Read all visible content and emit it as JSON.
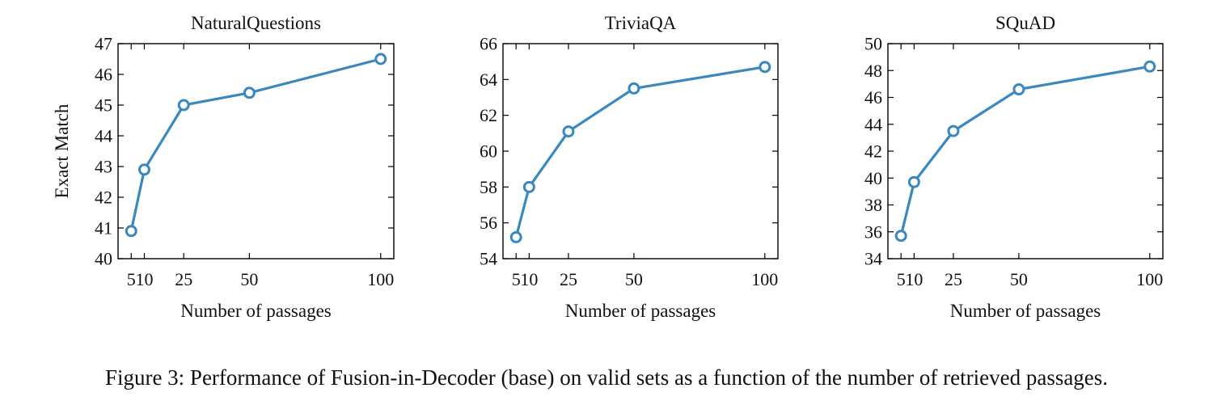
{
  "chart_data": [
    {
      "type": "line",
      "title": "NaturalQuestions",
      "xlabel": "Number of passages",
      "ylabel": "Exact Match",
      "x": [
        5,
        10,
        25,
        50,
        100
      ],
      "xticks": [
        5,
        10,
        25,
        50,
        100
      ],
      "yticks": [
        40,
        41,
        42,
        43,
        44,
        45,
        46,
        47
      ],
      "ylim": [
        40,
        47
      ],
      "series": [
        {
          "values": [
            40.9,
            42.9,
            45.0,
            45.4,
            46.5
          ]
        }
      ],
      "color": "#3a88c0",
      "grid": false
    },
    {
      "type": "line",
      "title": "TriviaQA",
      "xlabel": "Number of passages",
      "ylabel": "",
      "x": [
        5,
        10,
        25,
        50,
        100
      ],
      "xticks": [
        5,
        10,
        25,
        50,
        100
      ],
      "yticks": [
        54,
        56,
        58,
        60,
        62,
        64,
        66
      ],
      "ylim": [
        54,
        66
      ],
      "series": [
        {
          "values": [
            55.2,
            58.0,
            61.1,
            63.5,
            64.7
          ]
        }
      ],
      "color": "#3a88c0",
      "grid": false
    },
    {
      "type": "line",
      "title": "SQuAD",
      "xlabel": "Number of passages",
      "ylabel": "",
      "x": [
        5,
        10,
        25,
        50,
        100
      ],
      "xticks": [
        5,
        10,
        25,
        50,
        100
      ],
      "yticks": [
        34,
        36,
        38,
        40,
        42,
        44,
        46,
        48,
        50
      ],
      "ylim": [
        34,
        50
      ],
      "series": [
        {
          "values": [
            35.7,
            39.7,
            43.5,
            46.6,
            48.3
          ]
        }
      ],
      "color": "#3a88c0",
      "grid": false
    }
  ],
  "caption": "Figure 3: Performance of Fusion-in-Decoder (base) on valid sets as a function of the number of retrieved passages."
}
